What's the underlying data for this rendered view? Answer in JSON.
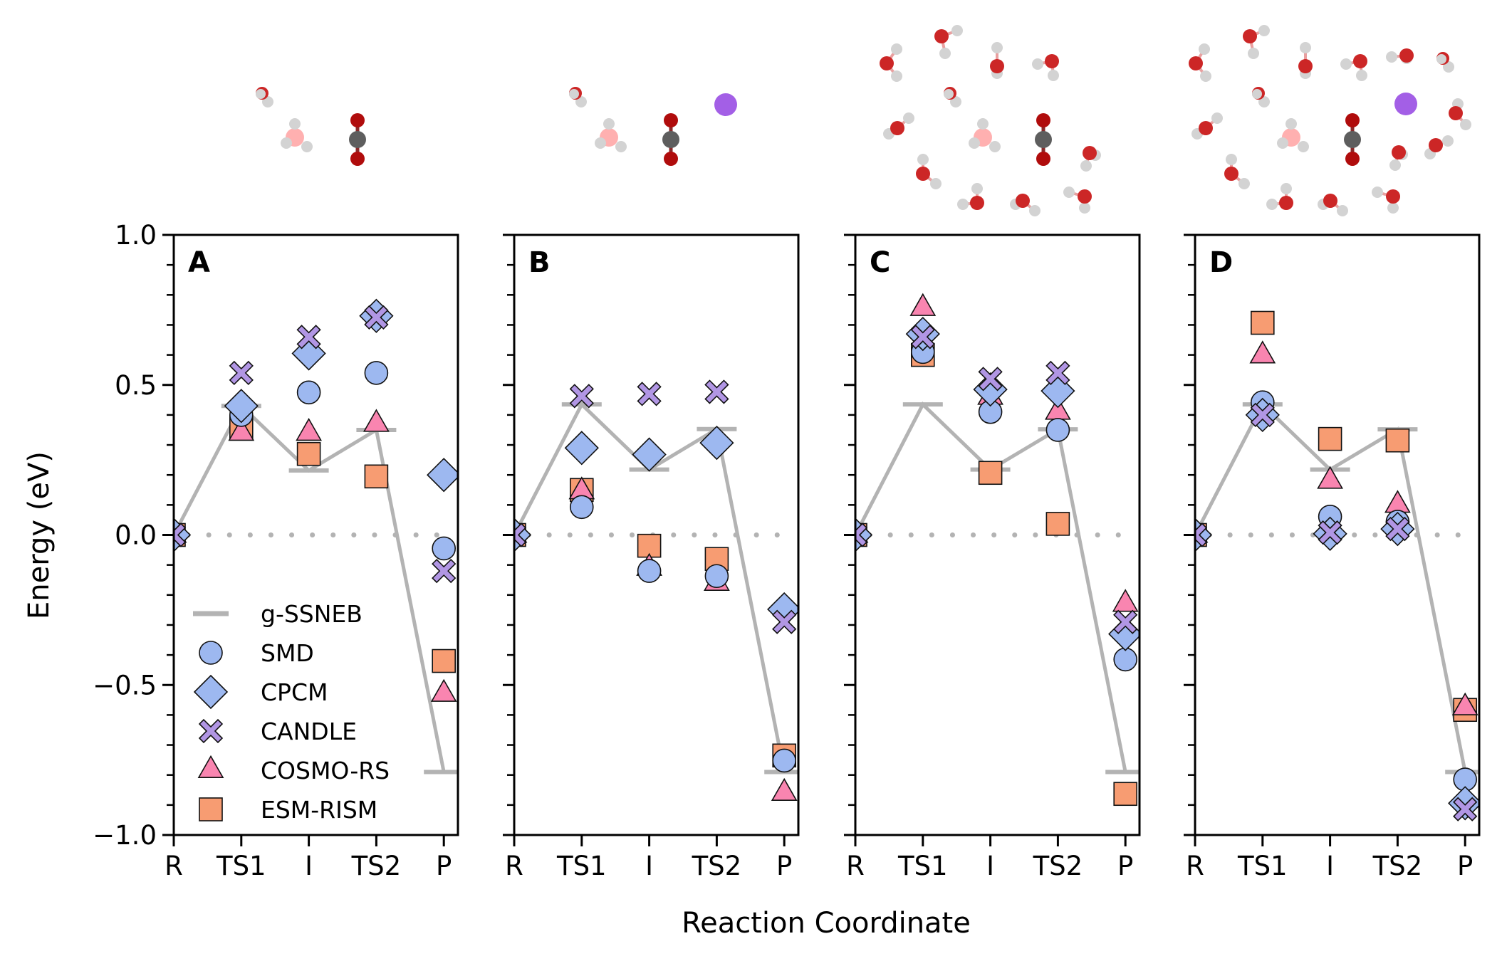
{
  "chart_data": {
    "type": "scatter",
    "ylabel": "Energy (eV)",
    "xlabel": "Reaction Coordinate",
    "ylim": [
      -1.0,
      1.0
    ],
    "yticks": [
      "1.0",
      "0.5",
      "0.0",
      "−0.5",
      "−1.0"
    ],
    "ytick_values": [
      1.0,
      0.5,
      0.0,
      -0.5,
      -1.0
    ],
    "minor_tick_step": 0.1,
    "categories": [
      "R",
      "TS1",
      "I",
      "TS2",
      "P"
    ],
    "reference_line": {
      "y": 0.0,
      "style": "dotted",
      "color": "#b3b3b3"
    },
    "legend": {
      "placement": "lower-left of panel A",
      "entries": [
        {
          "name": "g-SSNEB",
          "marker": "line",
          "color": "#b3b3b3"
        },
        {
          "name": "SMD",
          "marker": "circle",
          "color": "#9db8f0"
        },
        {
          "name": "CPCM",
          "marker": "diamond",
          "color": "#9db8f0"
        },
        {
          "name": "CANDLE",
          "marker": "x",
          "color": "#b196e4"
        },
        {
          "name": "COSMO-RS",
          "marker": "triangle",
          "color": "#f985b0"
        },
        {
          "name": "ESM-RISM",
          "marker": "square",
          "color": "#f79c72"
        }
      ]
    },
    "panels": [
      {
        "label": "A",
        "series": [
          {
            "name": "g-SSNEB",
            "values": [
              0.0,
              0.43,
              0.215,
              0.35,
              -0.79
            ]
          },
          {
            "name": "ESM-RISM",
            "values": [
              0.0,
              0.36,
              0.27,
              0.195,
              -0.42
            ]
          },
          {
            "name": "COSMO-RS",
            "values": [
              0.0,
              0.34,
              0.34,
              0.37,
              -0.53
            ]
          },
          {
            "name": "SMD",
            "values": [
              0.0,
              0.4,
              0.475,
              0.54,
              -0.045
            ]
          },
          {
            "name": "CPCM",
            "values": [
              0.0,
              0.43,
              0.605,
              0.73,
              0.2
            ]
          },
          {
            "name": "CANDLE",
            "values": [
              0.0,
              0.54,
              0.66,
              0.725,
              -0.12
            ]
          }
        ]
      },
      {
        "label": "B",
        "series": [
          {
            "name": "g-SSNEB",
            "values": [
              0.0,
              0.435,
              0.218,
              0.353,
              -0.79
            ]
          },
          {
            "name": "ESM-RISM",
            "values": [
              0.0,
              0.15,
              -0.036,
              -0.08,
              -0.735
            ]
          },
          {
            "name": "COSMO-RS",
            "values": [
              0.0,
              0.145,
              -0.11,
              -0.16,
              -0.86
            ]
          },
          {
            "name": "SMD",
            "values": [
              0.0,
              0.093,
              -0.12,
              -0.137,
              -0.752
            ]
          },
          {
            "name": "CPCM",
            "values": [
              0.0,
              0.29,
              0.268,
              0.307,
              -0.248
            ]
          },
          {
            "name": "CANDLE",
            "values": [
              0.0,
              0.463,
              0.47,
              0.477,
              -0.29
            ]
          }
        ]
      },
      {
        "label": "C",
        "series": [
          {
            "name": "g-SSNEB",
            "values": [
              0.0,
              0.435,
              0.218,
              0.352,
              -0.79
            ]
          },
          {
            "name": "ESM-RISM",
            "values": [
              0.0,
              0.6,
              0.207,
              0.037,
              -0.863
            ]
          },
          {
            "name": "COSMO-RS",
            "values": [
              0.0,
              0.756,
              0.46,
              0.41,
              -0.23
            ]
          },
          {
            "name": "SMD",
            "values": [
              0.0,
              0.61,
              0.41,
              0.35,
              -0.415
            ]
          },
          {
            "name": "CPCM",
            "values": [
              0.0,
              0.67,
              0.485,
              0.48,
              -0.33
            ]
          },
          {
            "name": "CANDLE",
            "values": [
              0.0,
              0.66,
              0.52,
              0.54,
              -0.29
            ]
          }
        ]
      },
      {
        "label": "D",
        "series": [
          {
            "name": "g-SSNEB",
            "values": [
              0.0,
              0.435,
              0.218,
              0.352,
              -0.79
            ]
          },
          {
            "name": "ESM-RISM",
            "values": [
              0.0,
              0.707,
              0.32,
              0.315,
              -0.583
            ]
          },
          {
            "name": "COSMO-RS",
            "values": [
              0.0,
              0.598,
              0.18,
              0.1,
              -0.575
            ]
          },
          {
            "name": "SMD",
            "values": [
              0.0,
              0.442,
              0.061,
              0.044,
              -0.815
            ]
          },
          {
            "name": "CPCM",
            "values": [
              0.0,
              0.4,
              0.004,
              0.02,
              -0.894
            ]
          },
          {
            "name": "CANDLE",
            "values": [
              0.0,
              0.4,
              0.008,
              0.02,
              -0.914
            ]
          }
        ]
      }
    ]
  },
  "molecular_structures": [
    {
      "panel": "A",
      "description": "H3O+ with one water and CO2"
    },
    {
      "panel": "B",
      "description": "H3O+ with one water, CO2 and a cation"
    },
    {
      "panel": "C",
      "description": "H3O+ and CO2 in explicit water cluster"
    },
    {
      "panel": "D",
      "description": "H3O+, CO2 and a cation in explicit water cluster"
    }
  ],
  "colors": {
    "oxygen": "#cc2626",
    "co2_oxygen": "#b00c0c",
    "hydrogen": "#d3d3d3",
    "hydronium_oxygen": "#ffb0b0",
    "carbon": "#5e5e5e",
    "cation": "#a35fe6"
  }
}
